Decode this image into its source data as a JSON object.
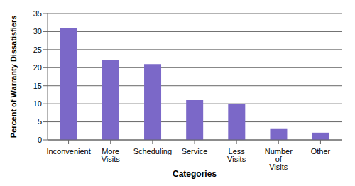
{
  "chart_data": {
    "type": "bar",
    "x_label": "Categories",
    "y_label": "Percent of Warranty Dissatisfiers",
    "categories": [
      "Inconvenient",
      "More Visits",
      "Scheduling",
      "Service",
      "Less Visits",
      "Number of Visits",
      "Other"
    ],
    "values": [
      31,
      22,
      21,
      11,
      10,
      3,
      2
    ],
    "color": "#7b68c8",
    "ylim": [
      0,
      35
    ],
    "yticks": [
      0,
      5,
      10,
      15,
      20,
      25,
      30,
      35
    ],
    "grid": true
  }
}
